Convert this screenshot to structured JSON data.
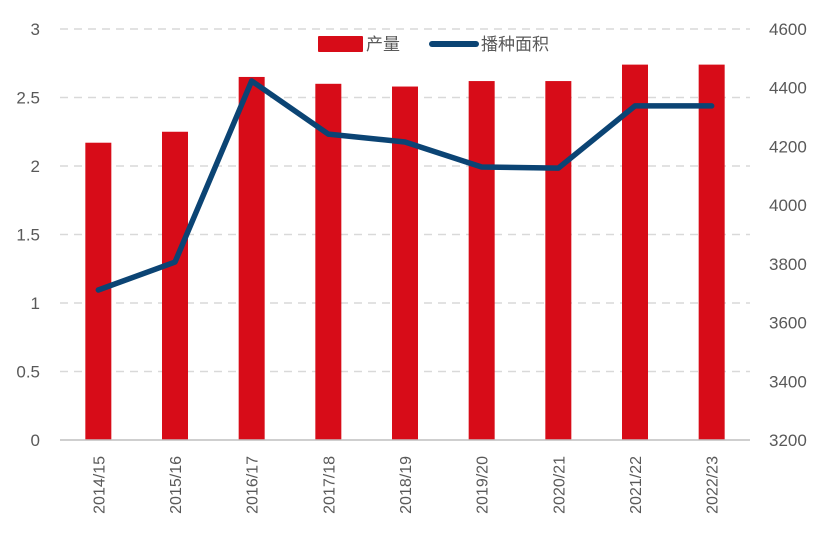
{
  "chart_data": {
    "type": "bar+line",
    "title": "",
    "categories": [
      "2014/15",
      "2015/16",
      "2016/17",
      "2017/18",
      "2018/19",
      "2019/20",
      "2020/21",
      "2021/22",
      "2022/23"
    ],
    "series": [
      {
        "name": "产量",
        "type": "bar",
        "axis": "left",
        "color": "#D70C18",
        "values": [
          2.17,
          2.25,
          2.65,
          2.6,
          2.58,
          2.62,
          2.62,
          2.74,
          2.74
        ]
      },
      {
        "name": "播种面积",
        "type": "line",
        "axis": "right",
        "color": "#0B4474",
        "values": [
          3711,
          3806,
          4423,
          4242,
          4215,
          4130,
          4126,
          4338,
          4338
        ]
      }
    ],
    "left_axis": {
      "ylim": [
        0,
        3
      ],
      "ticks": [
        "0",
        "0.5",
        "1",
        "1.5",
        "2",
        "2.5",
        "3"
      ]
    },
    "right_axis": {
      "ylim": [
        3200,
        4600
      ],
      "ticks": [
        "3200",
        "3400",
        "3600",
        "3800",
        "4000",
        "4200",
        "4400",
        "4600"
      ]
    },
    "xlabel": "",
    "ylabel": "",
    "grid": "horizontal dashed",
    "legend_position": "top-center"
  },
  "legend": {
    "bar_label": "产量",
    "line_label": "播种面积"
  },
  "colors": {
    "bar": "#D70C18",
    "line": "#0B4474",
    "grid": "#D9D9D9",
    "axis": "#BFBFBF",
    "text": "#595959"
  }
}
